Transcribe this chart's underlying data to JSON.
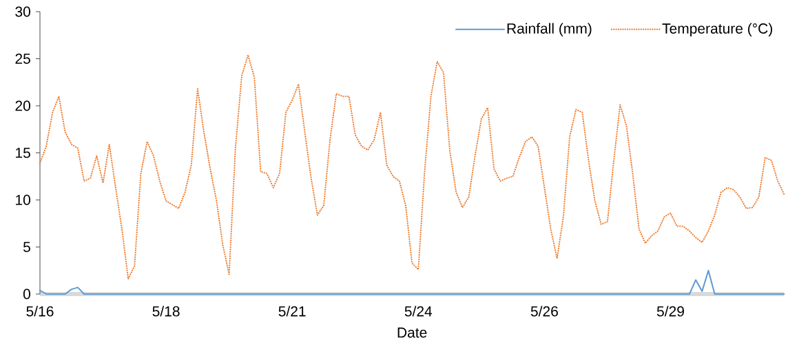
{
  "chart_data": {
    "type": "line",
    "xlabel": "Date",
    "legend": "top right",
    "ylim": [
      0,
      30
    ],
    "yticks": [
      0,
      5,
      10,
      15,
      20,
      25,
      30
    ],
    "categories": [
      "5/16",
      null,
      null,
      null,
      null,
      null,
      null,
      null,
      null,
      null,
      null,
      null,
      null,
      null,
      null,
      null,
      null,
      null,
      null,
      null,
      "5/18",
      null,
      null,
      null,
      null,
      null,
      null,
      null,
      null,
      null,
      null,
      null,
      null,
      null,
      null,
      null,
      null,
      null,
      null,
      null,
      "5/21",
      null,
      null,
      null,
      null,
      null,
      null,
      null,
      null,
      null,
      null,
      null,
      null,
      null,
      null,
      null,
      null,
      null,
      null,
      null,
      "5/24",
      null,
      null,
      null,
      null,
      null,
      null,
      null,
      null,
      null,
      null,
      null,
      null,
      null,
      null,
      null,
      null,
      null,
      null,
      null,
      "5/26",
      null,
      null,
      null,
      null,
      null,
      null,
      null,
      null,
      null,
      null,
      null,
      null,
      null,
      null,
      null,
      null,
      null,
      null,
      null,
      "5/29",
      null,
      null,
      null,
      null,
      null,
      null,
      null,
      null,
      null,
      null,
      null,
      null,
      null,
      null,
      null,
      null,
      null,
      null
    ],
    "series": [
      {
        "name": "Rainfall (mm)",
        "color": "#5b9bd5",
        "line_style": "solid",
        "values": [
          0.4,
          0,
          0,
          0,
          0,
          0.5,
          0.7,
          0,
          0,
          0,
          0,
          0,
          0,
          0,
          0,
          0,
          0,
          0,
          0,
          0,
          0,
          0,
          0,
          0,
          0,
          0,
          0,
          0,
          0,
          0,
          0,
          0,
          0,
          0,
          0,
          0,
          0,
          0,
          0,
          0,
          0,
          0,
          0,
          0,
          0,
          0,
          0,
          0,
          0,
          0,
          0,
          0,
          0,
          0,
          0,
          0,
          0,
          0,
          0,
          0,
          0,
          0,
          0,
          0,
          0,
          0,
          0,
          0,
          0,
          0,
          0,
          0,
          0,
          0,
          0,
          0,
          0,
          0,
          0,
          0,
          0,
          0,
          0,
          0,
          0,
          0,
          0,
          0,
          0,
          0,
          0,
          0,
          0,
          0,
          0,
          0,
          0,
          0,
          0,
          0,
          0,
          0,
          0,
          0,
          1.5,
          0.3,
          2.5,
          0,
          0,
          0,
          0,
          0,
          0,
          0,
          0,
          0,
          0,
          0,
          0
        ]
      },
      {
        "name": "Temperature (°C)",
        "color": "#ed7d31",
        "line_style": "dotted",
        "values": [
          13.9,
          15.7,
          19.3,
          21.0,
          17.2,
          15.9,
          15.5,
          12.0,
          12.3,
          14.7,
          11.8,
          15.9,
          11.3,
          6.9,
          1.6,
          3.0,
          12.8,
          16.2,
          14.7,
          12.0,
          9.9,
          9.5,
          9.1,
          10.8,
          13.7,
          21.8,
          17.2,
          13.3,
          9.9,
          5.2,
          2.1,
          15.5,
          23.2,
          25.4,
          23.0,
          13.0,
          12.8,
          11.3,
          12.8,
          19.3,
          20.6,
          22.3,
          17.2,
          12.3,
          8.4,
          9.4,
          16.4,
          21.3,
          21.0,
          21.0,
          16.9,
          15.7,
          15.3,
          16.4,
          19.3,
          13.7,
          12.5,
          12.0,
          9.4,
          3.3,
          2.6,
          13.0,
          21.0,
          24.7,
          23.5,
          15.2,
          10.8,
          9.2,
          10.3,
          14.7,
          18.6,
          19.8,
          13.3,
          12.0,
          12.3,
          12.5,
          14.5,
          16.2,
          16.7,
          15.7,
          11.3,
          6.9,
          3.8,
          8.2,
          16.7,
          19.6,
          19.3,
          14.2,
          9.9,
          7.4,
          7.7,
          14.2,
          20.1,
          17.9,
          12.8,
          6.9,
          5.4,
          6.2,
          6.7,
          8.2,
          8.6,
          7.2,
          7.2,
          6.7,
          6.0,
          5.5,
          6.7,
          8.4,
          10.8,
          11.3,
          11.1,
          10.3,
          9.1,
          9.2,
          10.3,
          14.5,
          14.2,
          12.0,
          10.6
        ]
      }
    ]
  }
}
